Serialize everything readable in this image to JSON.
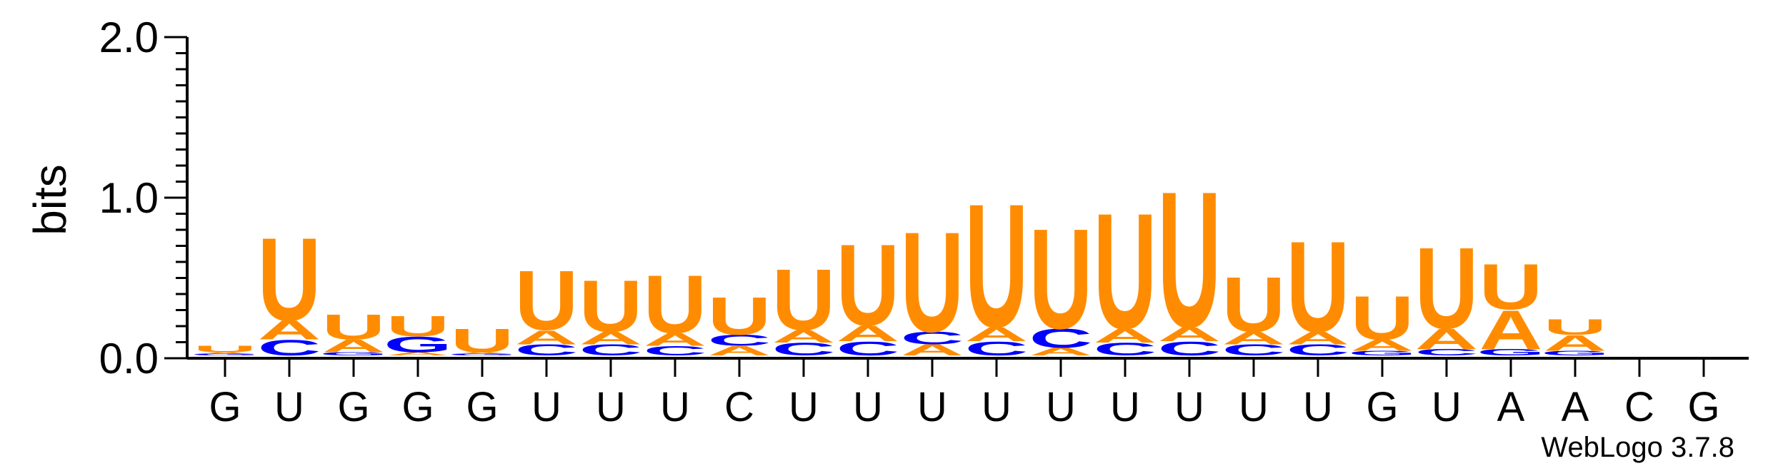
{
  "chart_data": {
    "type": "sequence-logo",
    "title": "",
    "xlabel": "",
    "ylabel": "bits",
    "ylim": [
      0,
      2.0
    ],
    "yticks": [
      "0.0",
      "1.0",
      "2.0"
    ],
    "credit": "WebLogo 3.7.8",
    "colors": {
      "A": "#FF8C00",
      "U": "#FF8C00",
      "C": "#0000FF",
      "G": "#0000FF"
    },
    "consensus": [
      "G",
      "U",
      "G",
      "G",
      "G",
      "U",
      "U",
      "U",
      "C",
      "U",
      "U",
      "U",
      "U",
      "U",
      "U",
      "U",
      "U",
      "U",
      "G",
      "U",
      "A",
      "A",
      "C",
      "G"
    ],
    "columns": [
      [
        {
          "letter": "G",
          "bits": 0.01
        },
        {
          "letter": "A",
          "bits": 0.01
        },
        {
          "letter": "U",
          "bits": 0.04
        }
      ],
      [
        {
          "letter": "C",
          "bits": 0.1
        },
        {
          "letter": "A",
          "bits": 0.12
        },
        {
          "letter": "U",
          "bits": 0.53
        }
      ],
      [
        {
          "letter": "G",
          "bits": 0.02
        },
        {
          "letter": "A",
          "bits": 0.08
        },
        {
          "letter": "U",
          "bits": 0.16
        }
      ],
      [
        {
          "letter": "A",
          "bits": 0.02
        },
        {
          "letter": "G",
          "bits": 0.1
        },
        {
          "letter": "U",
          "bits": 0.13
        }
      ],
      [
        {
          "letter": "G",
          "bits": 0.01
        },
        {
          "letter": "A",
          "bits": 0.01
        },
        {
          "letter": "U",
          "bits": 0.15
        }
      ],
      [
        {
          "letter": "C",
          "bits": 0.07
        },
        {
          "letter": "A",
          "bits": 0.09
        },
        {
          "letter": "U",
          "bits": 0.38
        }
      ],
      [
        {
          "letter": "C",
          "bits": 0.07
        },
        {
          "letter": "A",
          "bits": 0.08
        },
        {
          "letter": "U",
          "bits": 0.33
        }
      ],
      [
        {
          "letter": "C",
          "bits": 0.06
        },
        {
          "letter": "A",
          "bits": 0.08
        },
        {
          "letter": "U",
          "bits": 0.37
        }
      ],
      [
        {
          "letter": "A",
          "bits": 0.06
        },
        {
          "letter": "C",
          "bits": 0.07
        },
        {
          "letter": "U",
          "bits": 0.24
        }
      ],
      [
        {
          "letter": "C",
          "bits": 0.08
        },
        {
          "letter": "A",
          "bits": 0.08
        },
        {
          "letter": "U",
          "bits": 0.39
        }
      ],
      [
        {
          "letter": "C",
          "bits": 0.09
        },
        {
          "letter": "A",
          "bits": 0.1
        },
        {
          "letter": "U",
          "bits": 0.52
        }
      ],
      [
        {
          "letter": "A",
          "bits": 0.07
        },
        {
          "letter": "C",
          "bits": 0.08
        },
        {
          "letter": "U",
          "bits": 0.64
        }
      ],
      [
        {
          "letter": "C",
          "bits": 0.09
        },
        {
          "letter": "A",
          "bits": 0.09
        },
        {
          "letter": "U",
          "bits": 0.79
        }
      ],
      [
        {
          "letter": "A",
          "bits": 0.05
        },
        {
          "letter": "C",
          "bits": 0.12
        },
        {
          "letter": "U",
          "bits": 0.64
        }
      ],
      [
        {
          "letter": "C",
          "bits": 0.08
        },
        {
          "letter": "A",
          "bits": 0.09
        },
        {
          "letter": "U",
          "bits": 0.74
        }
      ],
      [
        {
          "letter": "C",
          "bits": 0.09
        },
        {
          "letter": "A",
          "bits": 0.09
        },
        {
          "letter": "U",
          "bits": 0.87
        }
      ],
      [
        {
          "letter": "C",
          "bits": 0.07
        },
        {
          "letter": "A",
          "bits": 0.08
        },
        {
          "letter": "U",
          "bits": 0.35
        }
      ],
      [
        {
          "letter": "C",
          "bits": 0.07
        },
        {
          "letter": "A",
          "bits": 0.08
        },
        {
          "letter": "U",
          "bits": 0.58
        }
      ],
      [
        {
          "letter": "G",
          "bits": 0.03
        },
        {
          "letter": "A",
          "bits": 0.07
        },
        {
          "letter": "U",
          "bits": 0.28
        }
      ],
      [
        {
          "letter": "C",
          "bits": 0.04
        },
        {
          "letter": "A",
          "bits": 0.13
        },
        {
          "letter": "U",
          "bits": 0.52
        }
      ],
      [
        {
          "letter": "G",
          "bits": 0.04
        },
        {
          "letter": "A",
          "bits": 0.25
        },
        {
          "letter": "U",
          "bits": 0.29
        }
      ],
      [
        {
          "letter": "G",
          "bits": 0.03
        },
        {
          "letter": "A",
          "bits": 0.1
        },
        {
          "letter": "U",
          "bits": 0.1
        }
      ],
      [],
      []
    ]
  }
}
